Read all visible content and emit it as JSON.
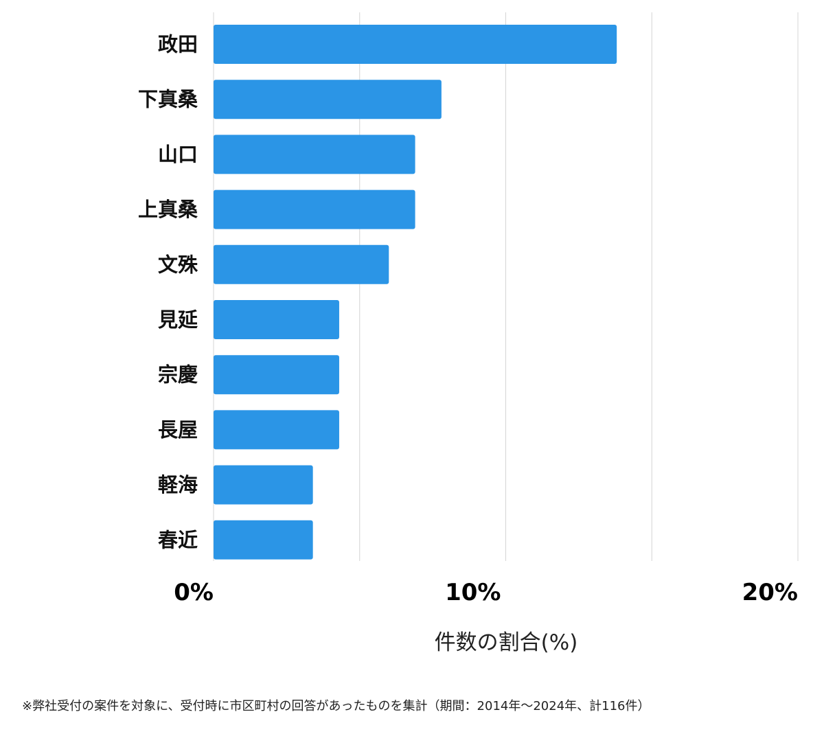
{
  "chart_data": {
    "type": "bar",
    "orientation": "horizontal",
    "categories": [
      "政田",
      "下真桑",
      "山口",
      "上真桑",
      "文殊",
      "見延",
      "宗慶",
      "長屋",
      "軽海",
      "春近"
    ],
    "values": [
      13.8,
      7.8,
      6.9,
      6.9,
      6.0,
      4.3,
      4.3,
      4.3,
      3.4,
      3.4
    ],
    "xlim": [
      0,
      20
    ],
    "tick_values": [
      0,
      10,
      20
    ],
    "tick_labels": [
      "0%",
      "10%",
      "20%"
    ],
    "xlabel": "件数の割合(%)",
    "grid": true,
    "bar_color": "#2b95e6",
    "grid_color": "#d4d4d4"
  },
  "footnote": "※弊社受付の案件を対象に、受付時に市区町村の回答があったものを集計（期間：2014年～2024年、計116件）"
}
